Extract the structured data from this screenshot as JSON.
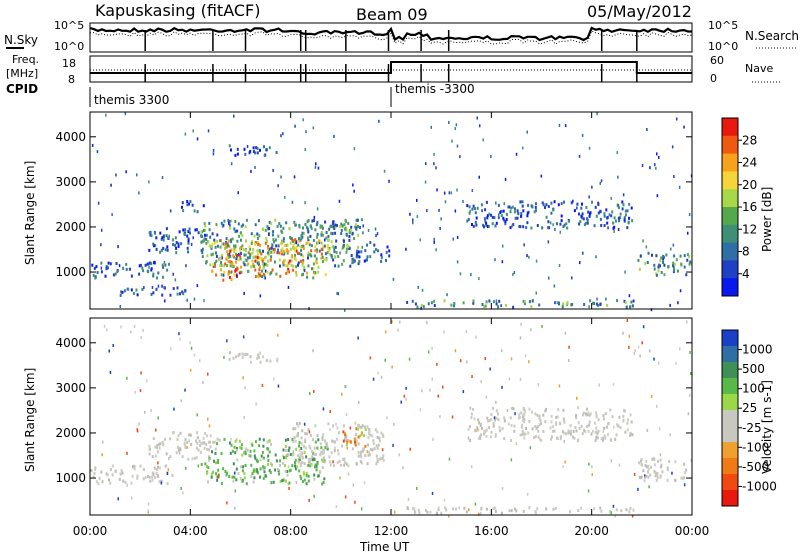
{
  "header": {
    "station": "Kapuskasing (fitACF)",
    "beam": "Beam 09",
    "date": "05/May/2012"
  },
  "noise_panel": {
    "left_label": "N.Sky",
    "right_label": "N.Search",
    "left_ticks": [
      "10^5",
      "10^0"
    ],
    "right_ticks": [
      "10^5",
      "10^0"
    ]
  },
  "freq_panel": {
    "left_label_1": "Freq.",
    "left_label_2": "[MHz]",
    "right_label": "Nave",
    "left_ticks": [
      "18",
      "8"
    ],
    "right_ticks": [
      "60",
      "0"
    ]
  },
  "cpid": {
    "label": "CPID",
    "segments": [
      {
        "name": "themis 3300",
        "start_hour": 0,
        "end_hour": 12
      },
      {
        "name": "themis -3300",
        "start_hour": 12,
        "end_hour": 24
      }
    ]
  },
  "chart_data": [
    {
      "type": "heatmap",
      "name": "power",
      "ylabel": "Slant Range [km]",
      "colorbar_label": "Power [dB]",
      "colorbar_ticks": [
        "28",
        "24",
        "20",
        "16",
        "12",
        "8",
        "4"
      ],
      "colorbar_colors": [
        "#e8190f",
        "#f05a10",
        "#f7a21c",
        "#f6d53a",
        "#a7d848",
        "#56a84f",
        "#3f8f76",
        "#2f6fa6",
        "#1f3fc4",
        "#0a18f0"
      ],
      "x_range_hours": [
        0,
        24
      ],
      "y_range_km": [
        180,
        4550
      ],
      "y_ticks": [
        1000,
        2000,
        3000,
        4000
      ],
      "regions": [
        {
          "t0": 0.0,
          "t1": 3.3,
          "r0": 900,
          "r1": 1250,
          "level": "low"
        },
        {
          "t0": 2.3,
          "t1": 4.8,
          "r0": 1450,
          "r1": 2000,
          "level": "low"
        },
        {
          "t0": 3.5,
          "t1": 4.5,
          "r0": 2350,
          "r1": 2600,
          "level": "low"
        },
        {
          "t0": 4.4,
          "t1": 10.8,
          "r0": 1150,
          "r1": 2200,
          "level": "mid"
        },
        {
          "t0": 4.8,
          "t1": 9.5,
          "r0": 900,
          "r1": 1750,
          "level": "high"
        },
        {
          "t0": 5.2,
          "t1": 6.0,
          "r0": 850,
          "r1": 1600,
          "level": "peak"
        },
        {
          "t0": 6.5,
          "t1": 7.0,
          "r0": 900,
          "r1": 1650,
          "level": "peak"
        },
        {
          "t0": 7.5,
          "t1": 8.2,
          "r0": 1000,
          "r1": 1800,
          "level": "peak"
        },
        {
          "t0": 9.2,
          "t1": 10.5,
          "r0": 1500,
          "r1": 2100,
          "level": "mid"
        },
        {
          "t0": 10.5,
          "t1": 11.9,
          "r0": 1250,
          "r1": 1700,
          "level": "low"
        },
        {
          "t0": 5.5,
          "t1": 7.5,
          "r0": 3600,
          "r1": 3850,
          "level": "low"
        },
        {
          "t0": 12.6,
          "t1": 21.8,
          "r0": 250,
          "r1": 400,
          "level": "mid"
        },
        {
          "t0": 15.0,
          "t1": 21.6,
          "r0": 2000,
          "r1": 2600,
          "level": "low"
        },
        {
          "t0": 21.8,
          "t1": 24.0,
          "r0": 950,
          "r1": 1450,
          "level": "mid"
        },
        {
          "t0": 1.0,
          "t1": 3.8,
          "r0": 500,
          "r1": 700,
          "level": "low"
        }
      ]
    },
    {
      "type": "heatmap",
      "name": "velocity",
      "ylabel": "Slant Range [km]",
      "xlabel": "Time UT",
      "colorbar_label": "Velocity [m s-1]",
      "colorbar_ticks": [
        "1000",
        "500",
        "100",
        "25",
        "-25",
        "-100",
        "-500",
        "-1000"
      ],
      "colorbar_colors": [
        "#1c3fc8",
        "#2f6fa6",
        "#3f8f56",
        "#58b848",
        "#9ad84a",
        "#c8c8c0",
        "#c8c8c0",
        "#f0a030",
        "#f07a18",
        "#f04a10",
        "#e8190f"
      ],
      "x_range_hours": [
        0,
        24
      ],
      "x_ticks": [
        "00:00",
        "04:00",
        "08:00",
        "12:00",
        "16:00",
        "20:00",
        "00:00"
      ],
      "y_range_km": [
        180,
        4550
      ],
      "y_ticks": [
        1000,
        2000,
        3000,
        4000
      ],
      "regions": [
        {
          "t0": 0.0,
          "t1": 3.3,
          "r0": 900,
          "r1": 1300,
          "level": "gray"
        },
        {
          "t0": 2.3,
          "t1": 4.8,
          "r0": 1450,
          "r1": 2050,
          "level": "gray"
        },
        {
          "t0": 4.4,
          "t1": 9.5,
          "r0": 900,
          "r1": 1900,
          "level": "green"
        },
        {
          "t0": 8.0,
          "t1": 11.8,
          "r0": 1300,
          "r1": 2250,
          "level": "gray"
        },
        {
          "t0": 10.0,
          "t1": 11.0,
          "r0": 1700,
          "r1": 2150,
          "level": "orange"
        },
        {
          "t0": 5.5,
          "t1": 7.5,
          "r0": 3600,
          "r1": 3850,
          "level": "gray"
        },
        {
          "t0": 15.0,
          "t1": 21.6,
          "r0": 1850,
          "r1": 2600,
          "level": "gray"
        },
        {
          "t0": 21.8,
          "t1": 24.0,
          "r0": 950,
          "r1": 1450,
          "level": "gray"
        },
        {
          "t0": 12.6,
          "t1": 21.8,
          "r0": 250,
          "r1": 380,
          "level": "gray"
        }
      ]
    }
  ]
}
